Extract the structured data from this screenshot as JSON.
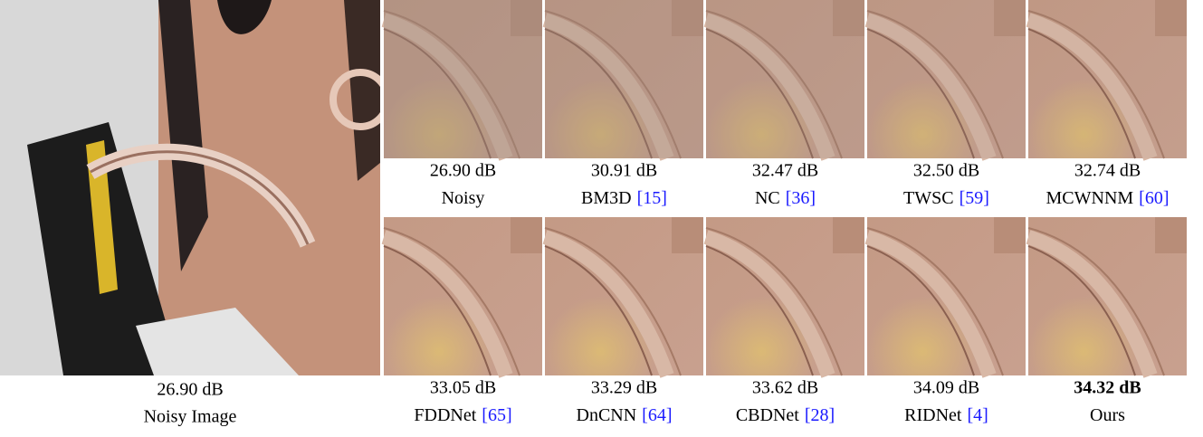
{
  "figure": {
    "main": {
      "psnr": "26.90 dB",
      "label": "Noisy Image"
    },
    "crops": [
      {
        "psnr": "26.90 dB",
        "name": "Noisy"
      },
      {
        "psnr": "30.91 dB",
        "name": "BM3D",
        "ref": "[15]"
      },
      {
        "psnr": "32.47 dB",
        "name": "NC",
        "ref": "[36]"
      },
      {
        "psnr": "32.50 dB",
        "name": "TWSC",
        "ref": "[59]"
      },
      {
        "psnr": "32.74 dB",
        "name": "MCWNNM",
        "ref": "[60]"
      },
      {
        "psnr": "33.05 dB",
        "name": "FDDNet",
        "ref": "[65]"
      },
      {
        "psnr": "33.29 dB",
        "name": "DnCNN",
        "ref": "[64]"
      },
      {
        "psnr": "33.62 dB",
        "name": "CBDNet",
        "ref": "[28]"
      },
      {
        "psnr": "34.09 dB",
        "name": "RIDNet",
        "ref": "[4]"
      },
      {
        "psnr": "34.32 dB",
        "name": "Ours",
        "bold": true
      }
    ]
  }
}
